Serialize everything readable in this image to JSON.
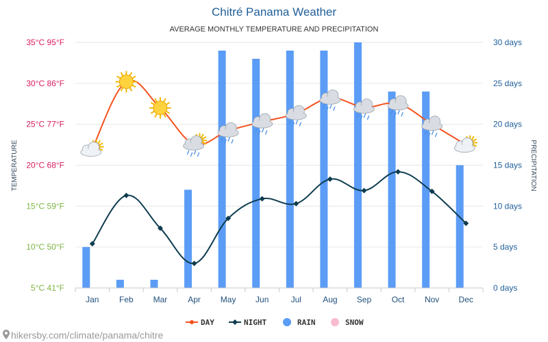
{
  "title": "Chitré Panama Weather",
  "subtitle": "AVERAGE MONTHLY TEMPERATURE AND PRECIPITATION",
  "footer": "hikersby.com/climate/panama/chitre",
  "colors": {
    "day": "#f4511e",
    "night": "#0d3b4f",
    "rain": "#5b9cf6",
    "snow": "#f8bbd0",
    "temp_tick_hot": "#d81b60",
    "temp_tick_mid": "#d81b60",
    "temp_tick_cool": "#7cb342",
    "precip_tick": "#1f5f99"
  },
  "chart_data": {
    "type": "line",
    "categories": [
      "Jan",
      "Feb",
      "Mar",
      "Apr",
      "May",
      "Jun",
      "Jul",
      "Aug",
      "Sep",
      "Oct",
      "Nov",
      "Dec"
    ],
    "series": [
      {
        "name": "DAY",
        "axis": "temperature",
        "values": [
          22,
          30.2,
          27,
          22.6,
          24.2,
          25.3,
          26.3,
          28.2,
          27.1,
          27.5,
          25,
          22.5
        ]
      },
      {
        "name": "NIGHT",
        "axis": "temperature",
        "values": [
          10.4,
          16.3,
          12.3,
          8,
          13.5,
          15.9,
          15.3,
          18.3,
          16.9,
          19.2,
          16.8,
          12.9
        ]
      },
      {
        "name": "RAIN",
        "type": "bar",
        "axis": "precipitation",
        "values": [
          5,
          1,
          1,
          12,
          29,
          28,
          29,
          29,
          30,
          24,
          24,
          15
        ]
      },
      {
        "name": "SNOW",
        "type": "bar",
        "axis": "precipitation",
        "values": [
          0,
          0,
          0,
          0,
          0,
          0,
          0,
          0,
          0,
          0,
          0,
          0
        ]
      }
    ],
    "weather_icons": [
      "partly-sunny",
      "sun",
      "sun",
      "sun-rain-cloud",
      "rain-cloud",
      "rain-cloud",
      "rain-cloud",
      "rain-cloud",
      "rain-cloud",
      "rain-cloud",
      "rain-cloud",
      "partly-sunny"
    ],
    "y_left": {
      "label": "TEMPERATURE",
      "range": [
        5,
        35
      ],
      "ticks": [
        {
          "value": 35,
          "label": "35°C 95°F"
        },
        {
          "value": 30,
          "label": "30°C 86°F"
        },
        {
          "value": 25,
          "label": "25°C 77°F"
        },
        {
          "value": 20,
          "label": "20°C 68°F"
        },
        {
          "value": 15,
          "label": "15°C 59°F"
        },
        {
          "value": 10,
          "label": "10°C 50°F"
        },
        {
          "value": 5,
          "label": "5°C 41°F"
        }
      ]
    },
    "y_right": {
      "label": "PRECIPITATION",
      "range": [
        0,
        30
      ],
      "ticks": [
        {
          "value": 30,
          "label": "30 days"
        },
        {
          "value": 25,
          "label": "25 days"
        },
        {
          "value": 20,
          "label": "20 days"
        },
        {
          "value": 15,
          "label": "15 days"
        },
        {
          "value": 10,
          "label": "10 days"
        },
        {
          "value": 5,
          "label": "5 days"
        },
        {
          "value": 0,
          "label": "0 days"
        }
      ]
    },
    "grid": true,
    "legend_position": "bottom-center"
  }
}
